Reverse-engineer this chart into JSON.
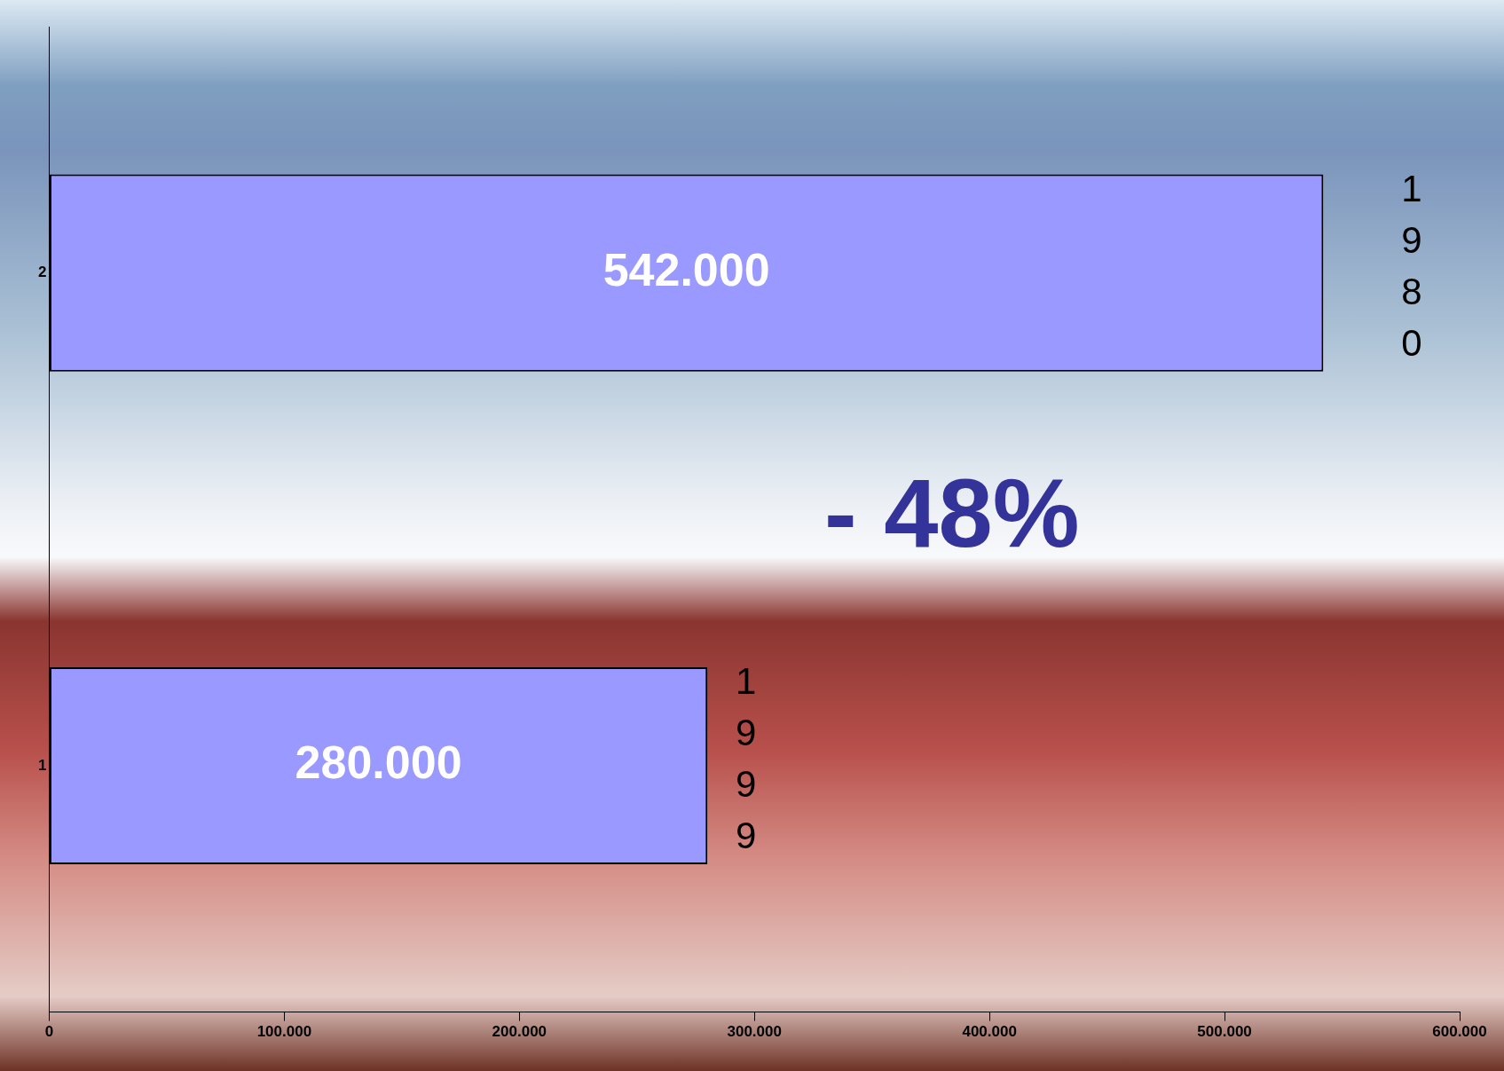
{
  "chart_data": {
    "type": "bar",
    "orientation": "horizontal",
    "categories": [
      "2",
      "1"
    ],
    "values": [
      542000,
      280000
    ],
    "value_labels": [
      "542.000",
      "280.000"
    ],
    "color": "#9999ff",
    "xlim": [
      0,
      600000
    ],
    "xticks": [
      0,
      {
        "value": 100000,
        "label": "100.000"
      },
      {
        "value": 200000,
        "label": "200.000"
      },
      {
        "value": 300000,
        "label": "300.000"
      },
      {
        "value": 400000,
        "label": "400.000"
      },
      {
        "value": 500000,
        "label": "500.000"
      },
      {
        "value": 600000,
        "label": "600.000"
      }
    ],
    "annotations": [
      "1980",
      "1999",
      "- 48%"
    ],
    "grid": false,
    "legend": false
  }
}
